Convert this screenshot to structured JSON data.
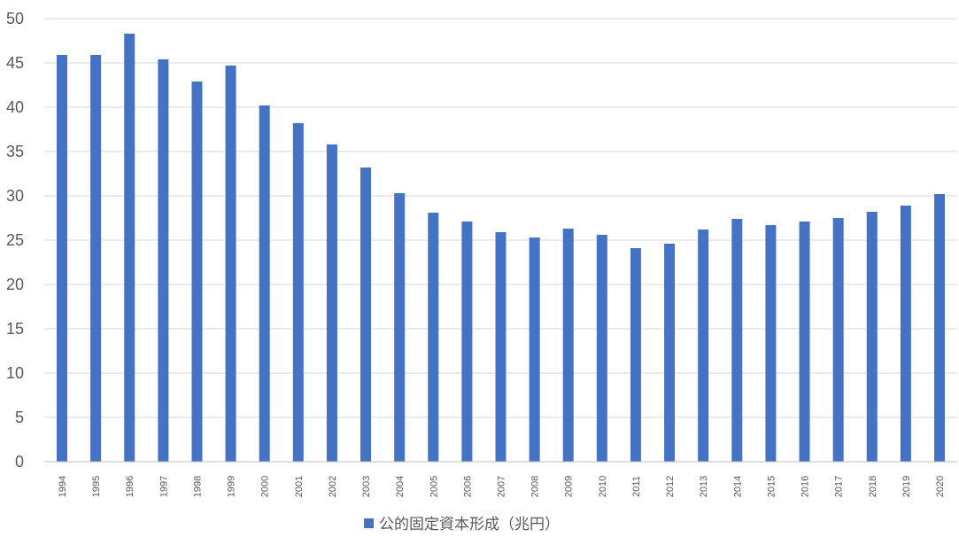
{
  "chart_data": {
    "type": "bar",
    "categories": [
      "1994",
      "1995",
      "1996",
      "1997",
      "1998",
      "1999",
      "2000",
      "2001",
      "2002",
      "2003",
      "2004",
      "2005",
      "2006",
      "2007",
      "2008",
      "2009",
      "2010",
      "2011",
      "2012",
      "2013",
      "2014",
      "2015",
      "2016",
      "2017",
      "2018",
      "2019",
      "2020"
    ],
    "series": [
      {
        "name": "公的固定資本形成（兆円）",
        "values": [
          45.9,
          45.9,
          48.3,
          45.4,
          42.9,
          44.7,
          40.2,
          38.2,
          35.8,
          33.2,
          30.3,
          28.1,
          27.1,
          25.9,
          25.3,
          26.3,
          25.6,
          24.1,
          24.6,
          26.2,
          27.4,
          26.7,
          27.1,
          27.5,
          28.2,
          28.9,
          30.2
        ],
        "color": "#4472c4"
      }
    ],
    "ylim": [
      0,
      50
    ],
    "yticks": [
      0,
      5,
      10,
      15,
      20,
      25,
      30,
      35,
      40,
      45,
      50
    ],
    "grid": true,
    "legend_position": "bottom-center"
  }
}
